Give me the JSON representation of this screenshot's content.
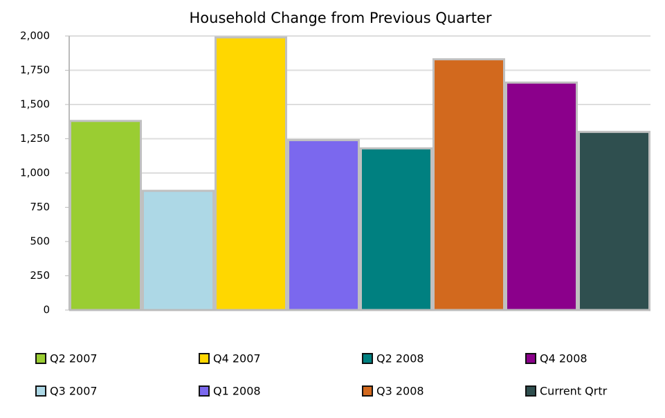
{
  "chart_data": {
    "type": "bar",
    "title": "Household Change from Previous Quarter",
    "categories": [
      "Q2 2007",
      "Q3 2007",
      "Q4 2007",
      "Q1 2008",
      "Q2 2008",
      "Q3 2008",
      "Q4 2008",
      "Current Qrtr"
    ],
    "values": [
      1380,
      870,
      1990,
      1240,
      1180,
      1830,
      1660,
      1300
    ],
    "colors": [
      "#9acd32",
      "#add8e6",
      "#ffd700",
      "#7b68ee",
      "#008080",
      "#d2691e",
      "#8b008b",
      "#2f4f4f"
    ],
    "ylim": [
      0,
      2000
    ],
    "yticks": [
      0,
      250,
      500,
      750,
      {
        "value": 1000,
        "label": "1,000"
      },
      {
        "value": 1250,
        "label": "1,250"
      },
      {
        "value": 1500,
        "label": "1,500"
      },
      {
        "value": 1750,
        "label": "1,750"
      },
      {
        "value": 2000,
        "label": "2,000"
      }
    ],
    "grid": true,
    "legend": "bottom"
  }
}
